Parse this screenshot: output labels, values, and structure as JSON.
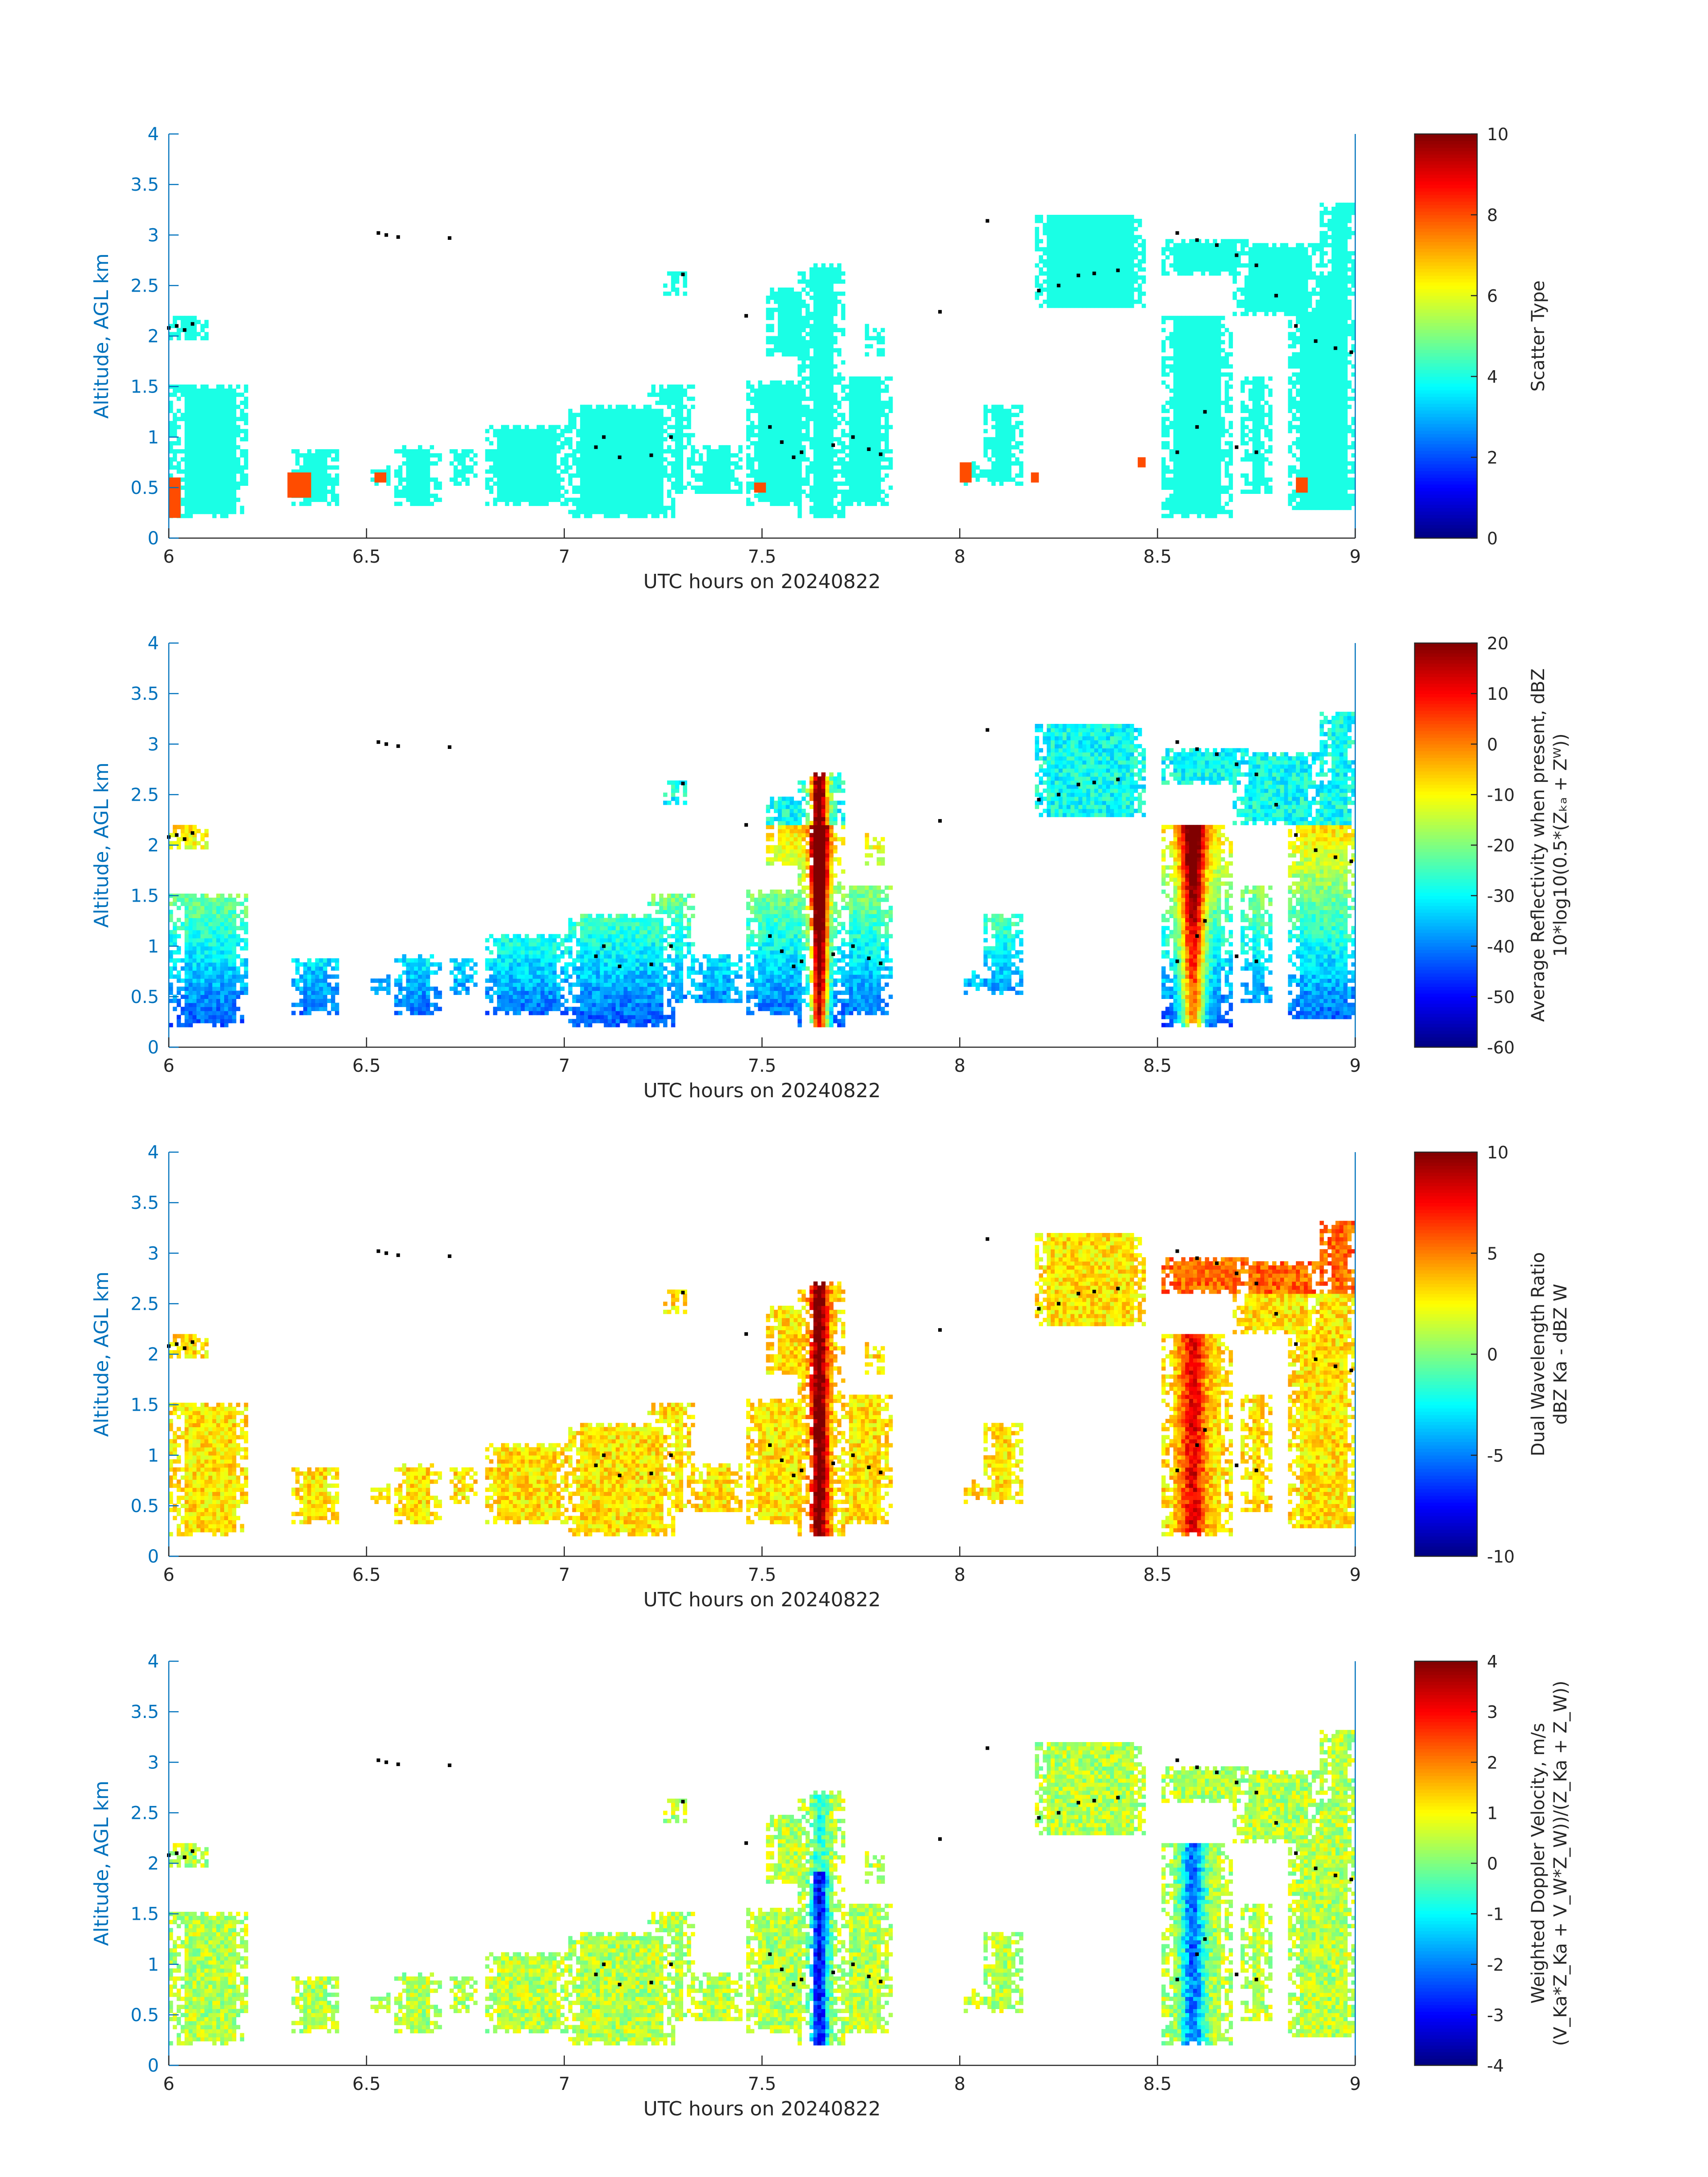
{
  "chart_data": [
    {
      "type": "heatmap",
      "title": "",
      "xlabel": "UTC hours on 20240822",
      "ylabel": "Altitude, AGL km",
      "xlim": [
        6,
        9
      ],
      "ylim": [
        0,
        4
      ],
      "xticks": [
        "6",
        "6.5",
        "7",
        "7.5",
        "8",
        "8.5",
        "9"
      ],
      "yticks": [
        "0",
        "0.5",
        "1",
        "1.5",
        "2",
        "2.5",
        "3",
        "3.5",
        "4"
      ],
      "colorbar": {
        "label": [
          "Scatter Type"
        ],
        "range": [
          0,
          10
        ],
        "ticks": [
          "0",
          "2",
          "4",
          "6",
          "8",
          "10"
        ]
      },
      "colormap": "jet",
      "field": "scatter",
      "note_values": "dominant value ~4 (cyan) with a few ~8 (orange-red) pixels near the surface"
    },
    {
      "type": "heatmap",
      "title": "",
      "xlabel": "UTC hours on 20240822",
      "ylabel": "Altitude, AGL km",
      "xlim": [
        6,
        9
      ],
      "ylim": [
        0,
        4
      ],
      "xticks": [
        "6",
        "6.5",
        "7",
        "7.5",
        "8",
        "8.5",
        "9"
      ],
      "yticks": [
        "0",
        "0.5",
        "1",
        "1.5",
        "2",
        "2.5",
        "3",
        "3.5",
        "4"
      ],
      "colorbar": {
        "label": [
          "Average Reflectivity when present, dBZ",
          "10*log10(0.5*(Zₖₐ + Zᵂ))"
        ],
        "range": [
          -60,
          20
        ],
        "ticks": [
          "-60",
          "-50",
          "-40",
          "-30",
          "-20",
          "-10",
          "0",
          "10",
          "20"
        ]
      },
      "colormap": "jet",
      "field": "reflectivity"
    },
    {
      "type": "heatmap",
      "title": "",
      "xlabel": "UTC hours on 20240822",
      "ylabel": "Altitude, AGL km",
      "xlim": [
        6,
        9
      ],
      "ylim": [
        0,
        4
      ],
      "xticks": [
        "6",
        "6.5",
        "7",
        "7.5",
        "8",
        "8.5",
        "9"
      ],
      "yticks": [
        "0",
        "0.5",
        "1",
        "1.5",
        "2",
        "2.5",
        "3",
        "3.5",
        "4"
      ],
      "colorbar": {
        "label": [
          "Dual Wavelength Ratio",
          "dBZ Ka - dBZ W"
        ],
        "range": [
          -10,
          10
        ],
        "ticks": [
          "-10",
          "-5",
          "0",
          "5",
          "10"
        ]
      },
      "colormap": "jet",
      "field": "dwr"
    },
    {
      "type": "heatmap",
      "title": "",
      "xlabel": "UTC hours on 20240822",
      "ylabel": "Altitude, AGL km",
      "xlim": [
        6,
        9
      ],
      "ylim": [
        0,
        4
      ],
      "xticks": [
        "6",
        "6.5",
        "7",
        "7.5",
        "8",
        "8.5",
        "9"
      ],
      "yticks": [
        "0",
        "0.5",
        "1",
        "1.5",
        "2",
        "2.5",
        "3",
        "3.5",
        "4"
      ],
      "colorbar": {
        "label": [
          "Weighted Doppler Velocity, m/s",
          "(V_Ka*Z_Ka + V_W*Z_W))/(Z_Ka + Z_W))"
        ],
        "range": [
          -4,
          4
        ],
        "ticks": [
          "-4",
          "-3",
          "-2",
          "-1",
          "0",
          "1",
          "2",
          "3",
          "4"
        ]
      },
      "colormap": "jet",
      "field": "velocity"
    }
  ],
  "echo_regions": [
    {
      "t0": 6.0,
      "t1": 6.09,
      "z0": 1.95,
      "z1": 2.2
    },
    {
      "t0": 6.0,
      "t1": 6.19,
      "z0": 0.2,
      "z1": 1.5
    },
    {
      "t0": 6.3,
      "t1": 6.42,
      "z0": 0.3,
      "z1": 0.85
    },
    {
      "t0": 6.5,
      "t1": 6.55,
      "z0": 0.5,
      "z1": 0.7
    },
    {
      "t0": 6.56,
      "t1": 6.68,
      "z0": 0.3,
      "z1": 0.9
    },
    {
      "t0": 6.7,
      "t1": 6.77,
      "z0": 0.5,
      "z1": 0.85
    },
    {
      "t0": 6.79,
      "t1": 7.0,
      "z0": 0.3,
      "z1": 1.1
    },
    {
      "t0": 7.0,
      "t1": 7.27,
      "z0": 0.2,
      "z1": 1.3
    },
    {
      "t0": 7.2,
      "t1": 7.32,
      "z0": 0.4,
      "z1": 1.5
    },
    {
      "t0": 7.24,
      "t1": 7.3,
      "z0": 2.4,
      "z1": 2.62
    },
    {
      "t0": 7.32,
      "t1": 7.44,
      "z0": 0.4,
      "z1": 0.9
    },
    {
      "t0": 7.45,
      "t1": 7.62,
      "z0": 0.3,
      "z1": 1.55
    },
    {
      "t0": 7.5,
      "t1": 7.62,
      "z0": 1.8,
      "z1": 2.45
    },
    {
      "t0": 7.58,
      "t1": 7.7,
      "z0": 0.2,
      "z1": 2.7
    },
    {
      "t0": 7.68,
      "t1": 7.82,
      "z0": 0.3,
      "z1": 1.6
    },
    {
      "t0": 7.75,
      "t1": 7.8,
      "z0": 1.8,
      "z1": 2.1
    },
    {
      "t0": 8.0,
      "t1": 8.05,
      "z0": 0.5,
      "z1": 0.75
    },
    {
      "t0": 8.05,
      "t1": 8.15,
      "z0": 0.5,
      "z1": 1.3
    },
    {
      "t0": 8.18,
      "t1": 8.46,
      "z0": 2.25,
      "z1": 3.2
    },
    {
      "t0": 8.5,
      "t1": 8.68,
      "z0": 0.2,
      "z1": 2.2
    },
    {
      "t0": 8.5,
      "t1": 8.72,
      "z0": 2.6,
      "z1": 2.95
    },
    {
      "t0": 8.68,
      "t1": 8.9,
      "z0": 2.2,
      "z1": 2.9
    },
    {
      "t0": 8.7,
      "t1": 8.78,
      "z0": 0.4,
      "z1": 1.6
    },
    {
      "t0": 8.82,
      "t1": 9.0,
      "z0": 0.25,
      "z1": 2.6
    },
    {
      "t0": 8.9,
      "t1": 9.0,
      "z0": 1.2,
      "z1": 3.3
    }
  ],
  "black_dot_markers": [
    [
      6.0,
      2.08
    ],
    [
      6.02,
      2.1
    ],
    [
      6.04,
      2.06
    ],
    [
      6.06,
      2.12
    ],
    [
      6.53,
      3.02
    ],
    [
      6.55,
      3.0
    ],
    [
      6.58,
      2.98
    ],
    [
      6.71,
      2.97
    ],
    [
      7.08,
      0.9
    ],
    [
      7.1,
      1.0
    ],
    [
      7.14,
      0.8
    ],
    [
      7.22,
      0.82
    ],
    [
      7.27,
      1.0
    ],
    [
      7.3,
      2.61
    ],
    [
      7.46,
      2.2
    ],
    [
      7.52,
      1.1
    ],
    [
      7.55,
      0.95
    ],
    [
      7.58,
      0.8
    ],
    [
      7.6,
      0.85
    ],
    [
      7.68,
      0.92
    ],
    [
      7.73,
      1.0
    ],
    [
      7.77,
      0.88
    ],
    [
      7.8,
      0.83
    ],
    [
      7.95,
      2.24
    ],
    [
      8.07,
      3.14
    ],
    [
      8.2,
      2.45
    ],
    [
      8.25,
      2.5
    ],
    [
      8.3,
      2.6
    ],
    [
      8.34,
      2.62
    ],
    [
      8.4,
      2.65
    ],
    [
      8.55,
      3.02
    ],
    [
      8.6,
      2.95
    ],
    [
      8.65,
      2.9
    ],
    [
      8.7,
      2.8
    ],
    [
      8.75,
      2.7
    ],
    [
      8.8,
      2.4
    ],
    [
      8.85,
      2.1
    ],
    [
      8.9,
      1.95
    ],
    [
      8.95,
      1.88
    ],
    [
      8.99,
      1.84
    ],
    [
      8.55,
      0.85
    ],
    [
      8.6,
      1.1
    ],
    [
      8.62,
      1.25
    ],
    [
      8.7,
      0.9
    ],
    [
      8.75,
      0.85
    ]
  ],
  "surface_precip_blobs": [
    {
      "t0": 6.0,
      "t1": 6.03,
      "z0": 0.2,
      "z1": 0.6
    },
    {
      "t0": 6.3,
      "t1": 6.36,
      "z0": 0.4,
      "z1": 0.65
    },
    {
      "t0": 6.52,
      "t1": 6.55,
      "z0": 0.55,
      "z1": 0.65
    },
    {
      "t0": 7.48,
      "t1": 7.51,
      "z0": 0.45,
      "z1": 0.55
    },
    {
      "t0": 8.0,
      "t1": 8.03,
      "z0": 0.55,
      "z1": 0.75
    },
    {
      "t0": 8.18,
      "t1": 8.2,
      "z0": 0.55,
      "z1": 0.65
    },
    {
      "t0": 8.45,
      "t1": 8.47,
      "z0": 0.7,
      "z1": 0.8
    },
    {
      "t0": 8.85,
      "t1": 8.88,
      "z0": 0.45,
      "z1": 0.6
    }
  ]
}
